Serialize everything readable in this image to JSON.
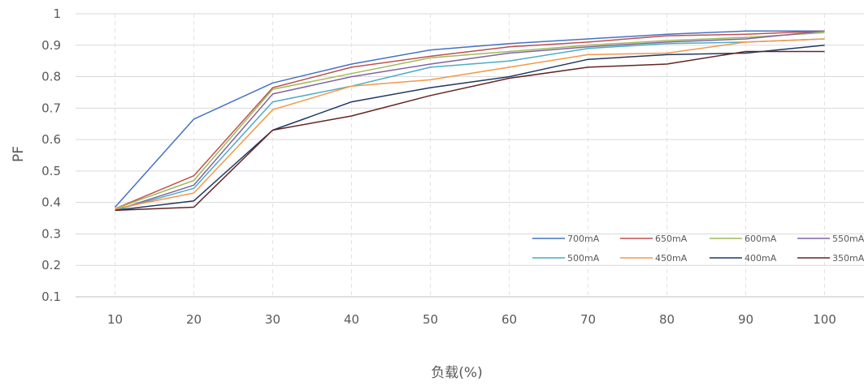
{
  "chart_data": {
    "type": "line",
    "title": "",
    "xlabel": "负载(%)",
    "ylabel": "PF",
    "categories": [
      "10",
      "20",
      "30",
      "40",
      "50",
      "60",
      "70",
      "80",
      "90",
      "100"
    ],
    "ylim": [
      0.1,
      1
    ],
    "yticks": [
      "0.1",
      "0.2",
      "0.3",
      "0.4",
      "0.5",
      "0.6",
      "0.7",
      "0.8",
      "0.9",
      "1"
    ],
    "grid": {
      "horizontal": true,
      "vertical_dashed": true
    },
    "legend": "bottom-right, inside plot area, 4 columns",
    "series": [
      {
        "name": "700mA",
        "color": "#4472C4",
        "values": [
          0.385,
          0.665,
          0.78,
          0.84,
          0.885,
          0.905,
          0.92,
          0.935,
          0.945,
          0.945
        ]
      },
      {
        "name": "650mA",
        "color": "#C0504D",
        "values": [
          0.38,
          0.485,
          0.765,
          0.83,
          0.865,
          0.895,
          0.91,
          0.93,
          0.935,
          0.945
        ]
      },
      {
        "name": "600mA",
        "color": "#9BBB59",
        "values": [
          0.38,
          0.47,
          0.76,
          0.81,
          0.86,
          0.88,
          0.9,
          0.915,
          0.925,
          0.94
        ]
      },
      {
        "name": "550mA",
        "color": "#8064A2",
        "values": [
          0.375,
          0.455,
          0.745,
          0.8,
          0.84,
          0.875,
          0.895,
          0.91,
          0.92,
          0.945
        ]
      },
      {
        "name": "500mA",
        "color": "#4BACC6",
        "values": [
          0.375,
          0.445,
          0.72,
          0.77,
          0.83,
          0.85,
          0.89,
          0.905,
          0.91,
          0.92
        ]
      },
      {
        "name": "450mA",
        "color": "#F79646",
        "values": [
          0.38,
          0.43,
          0.695,
          0.77,
          0.79,
          0.83,
          0.87,
          0.875,
          0.91,
          0.92
        ]
      },
      {
        "name": "400mA",
        "color": "#1F3864",
        "values": [
          0.375,
          0.405,
          0.63,
          0.72,
          0.765,
          0.8,
          0.855,
          0.87,
          0.875,
          0.9
        ]
      },
      {
        "name": "350mA",
        "color": "#632523",
        "values": [
          0.375,
          0.385,
          0.63,
          0.675,
          0.74,
          0.795,
          0.83,
          0.84,
          0.88,
          0.88
        ]
      }
    ]
  }
}
